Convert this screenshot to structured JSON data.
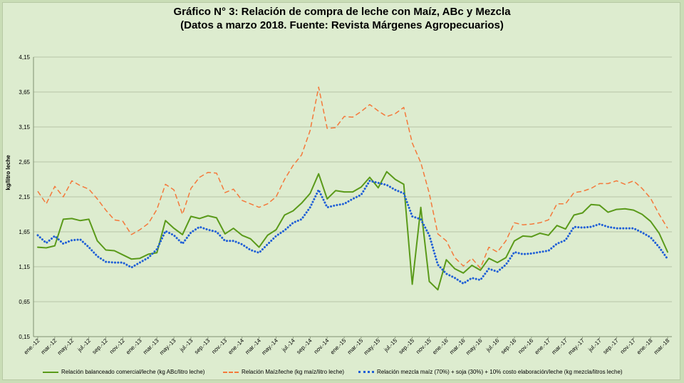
{
  "title": "Gráfico N° 3: Relación de compra de leche con Maíz, ABc  y Mezcla",
  "subtitle": "(Datos a marzo 2018. Fuente:  Revista Márgenes Agropecuarios)",
  "chart_data": {
    "type": "line",
    "title": "Gráfico N° 3: Relación de compra de leche con Maíz, ABc  y Mezcla",
    "subtitle": "(Datos a marzo 2018. Fuente:  Revista Márgenes Agropecuarios)",
    "ylabel": "kg/litro leche",
    "xlabel": "",
    "ylim": [
      0.15,
      4.15
    ],
    "yticks": [
      "0,15",
      "0,65",
      "1,15",
      "1,65",
      "2,15",
      "2,65",
      "3,15",
      "3,65",
      "4,15"
    ],
    "grid": "horizontal",
    "legend_position": "bottom",
    "x_tick_labels": [
      "ene.-12",
      "mar.-12",
      "may.-12",
      "jul.-12",
      "sep.-12",
      "nov.-12",
      "ene.-13",
      "mar.-13",
      "may.-13",
      "jul.-13",
      "sep.-13",
      "nov.-13",
      "ene.-14",
      "mar.-14",
      "may.-14",
      "jul.-14",
      "sep.-14",
      "nov.-14",
      "ene.-15",
      "mar.-15",
      "may.-15",
      "jul.-15",
      "sep.-15",
      "nov.-15",
      "ene.-16",
      "mar.-16",
      "may.-16",
      "jul.-16",
      "sep.-16",
      "nov.-16",
      "ene.-17",
      "mar.-17",
      "may.-17",
      "jul.-17",
      "sep.-17",
      "nov.-17",
      "ene.-18",
      "mar.-18"
    ],
    "series": [
      {
        "name": "Relación balanceado comercial/leche (kg ABc/litro leche)",
        "color": "#5a9a1a",
        "style": "solid",
        "values": [
          1.43,
          1.42,
          1.45,
          1.83,
          1.84,
          1.81,
          1.83,
          1.52,
          1.39,
          1.38,
          1.32,
          1.26,
          1.27,
          1.33,
          1.35,
          1.81,
          1.7,
          1.61,
          1.87,
          1.84,
          1.88,
          1.85,
          1.62,
          1.7,
          1.6,
          1.55,
          1.43,
          1.6,
          1.68,
          1.89,
          1.95,
          2.06,
          2.2,
          2.48,
          2.12,
          2.24,
          2.22,
          2.22,
          2.29,
          2.43,
          2.28,
          2.51,
          2.4,
          2.33,
          0.9,
          2.0,
          0.94,
          0.82,
          1.25,
          1.12,
          1.06,
          1.17,
          1.1,
          1.27,
          1.21,
          1.28,
          1.52,
          1.59,
          1.58,
          1.63,
          1.6,
          1.74,
          1.69,
          1.89,
          1.92,
          2.04,
          2.03,
          1.93,
          1.97,
          1.98,
          1.96,
          1.9,
          1.8,
          1.63,
          1.36
        ]
      },
      {
        "name": "Relación Maíz/leche (kg maíz/litro leche)",
        "color": "#f4793b",
        "style": "dashed",
        "values": [
          2.23,
          2.05,
          2.3,
          2.15,
          2.38,
          2.31,
          2.26,
          2.12,
          1.96,
          1.82,
          1.8,
          1.61,
          1.68,
          1.77,
          1.97,
          2.33,
          2.25,
          1.9,
          2.27,
          2.43,
          2.5,
          2.49,
          2.21,
          2.26,
          2.1,
          2.05,
          2.0,
          2.05,
          2.15,
          2.4,
          2.6,
          2.75,
          3.1,
          3.72,
          3.13,
          3.14,
          3.3,
          3.29,
          3.37,
          3.47,
          3.38,
          3.3,
          3.34,
          3.43,
          2.92,
          2.64,
          2.2,
          1.62,
          1.52,
          1.28,
          1.16,
          1.27,
          1.13,
          1.43,
          1.36,
          1.52,
          1.78,
          1.75,
          1.76,
          1.78,
          1.82,
          2.05,
          2.05,
          2.21,
          2.23,
          2.27,
          2.34,
          2.34,
          2.38,
          2.33,
          2.38,
          2.27,
          2.13,
          1.9,
          1.7
        ]
      },
      {
        "name": "Relación mezcla maíz (70%) + soja (30%) + 10% costo elaboración/leche (kg mezcla/litros leche)",
        "color": "#1f5fd6",
        "style": "dotted",
        "values": [
          1.6,
          1.49,
          1.59,
          1.48,
          1.53,
          1.54,
          1.43,
          1.3,
          1.22,
          1.21,
          1.21,
          1.14,
          1.21,
          1.28,
          1.4,
          1.66,
          1.6,
          1.48,
          1.64,
          1.72,
          1.68,
          1.65,
          1.52,
          1.52,
          1.47,
          1.39,
          1.35,
          1.47,
          1.59,
          1.67,
          1.78,
          1.83,
          2.0,
          2.25,
          2.0,
          2.03,
          2.05,
          2.12,
          2.18,
          2.38,
          2.35,
          2.32,
          2.25,
          2.2,
          1.87,
          1.83,
          1.6,
          1.18,
          1.05,
          0.99,
          0.91,
          0.99,
          0.96,
          1.12,
          1.08,
          1.18,
          1.36,
          1.33,
          1.34,
          1.36,
          1.38,
          1.48,
          1.53,
          1.72,
          1.71,
          1.72,
          1.76,
          1.72,
          1.7,
          1.7,
          1.7,
          1.64,
          1.57,
          1.43,
          1.26
        ]
      }
    ]
  }
}
